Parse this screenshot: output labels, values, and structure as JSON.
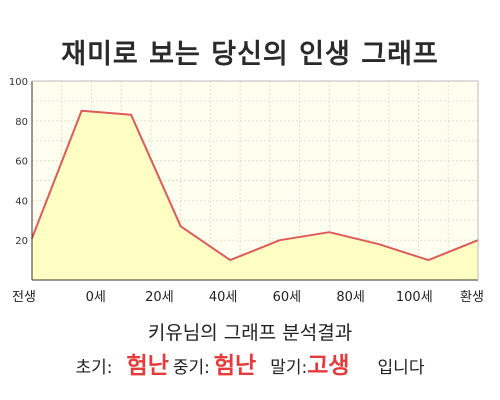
{
  "title": "재미로 보는 당신의 인생 그래프",
  "chart_data": {
    "type": "area",
    "x_tick_labels": [
      "전생",
      "0세",
      "20세",
      "40세",
      "60세",
      "80세",
      "100세",
      "환생"
    ],
    "y_ticks": [
      20,
      40,
      60,
      80,
      100
    ],
    "ylim": [
      0,
      100
    ],
    "points": [
      21,
      85,
      83,
      27,
      10,
      20,
      24,
      18,
      10,
      20
    ],
    "line_color": "#e05a5a",
    "fill_color": "#ffffc4",
    "plot_background": "#fffff0",
    "grid": true
  },
  "analysis": {
    "heading": "키유님의 그래프 분석결과",
    "early_label": "초기:",
    "early_value": "험난",
    "middle_label": "중기:",
    "middle_value": "험난",
    "late_label": "말기:",
    "late_value": "고생",
    "suffix": "입니다"
  }
}
